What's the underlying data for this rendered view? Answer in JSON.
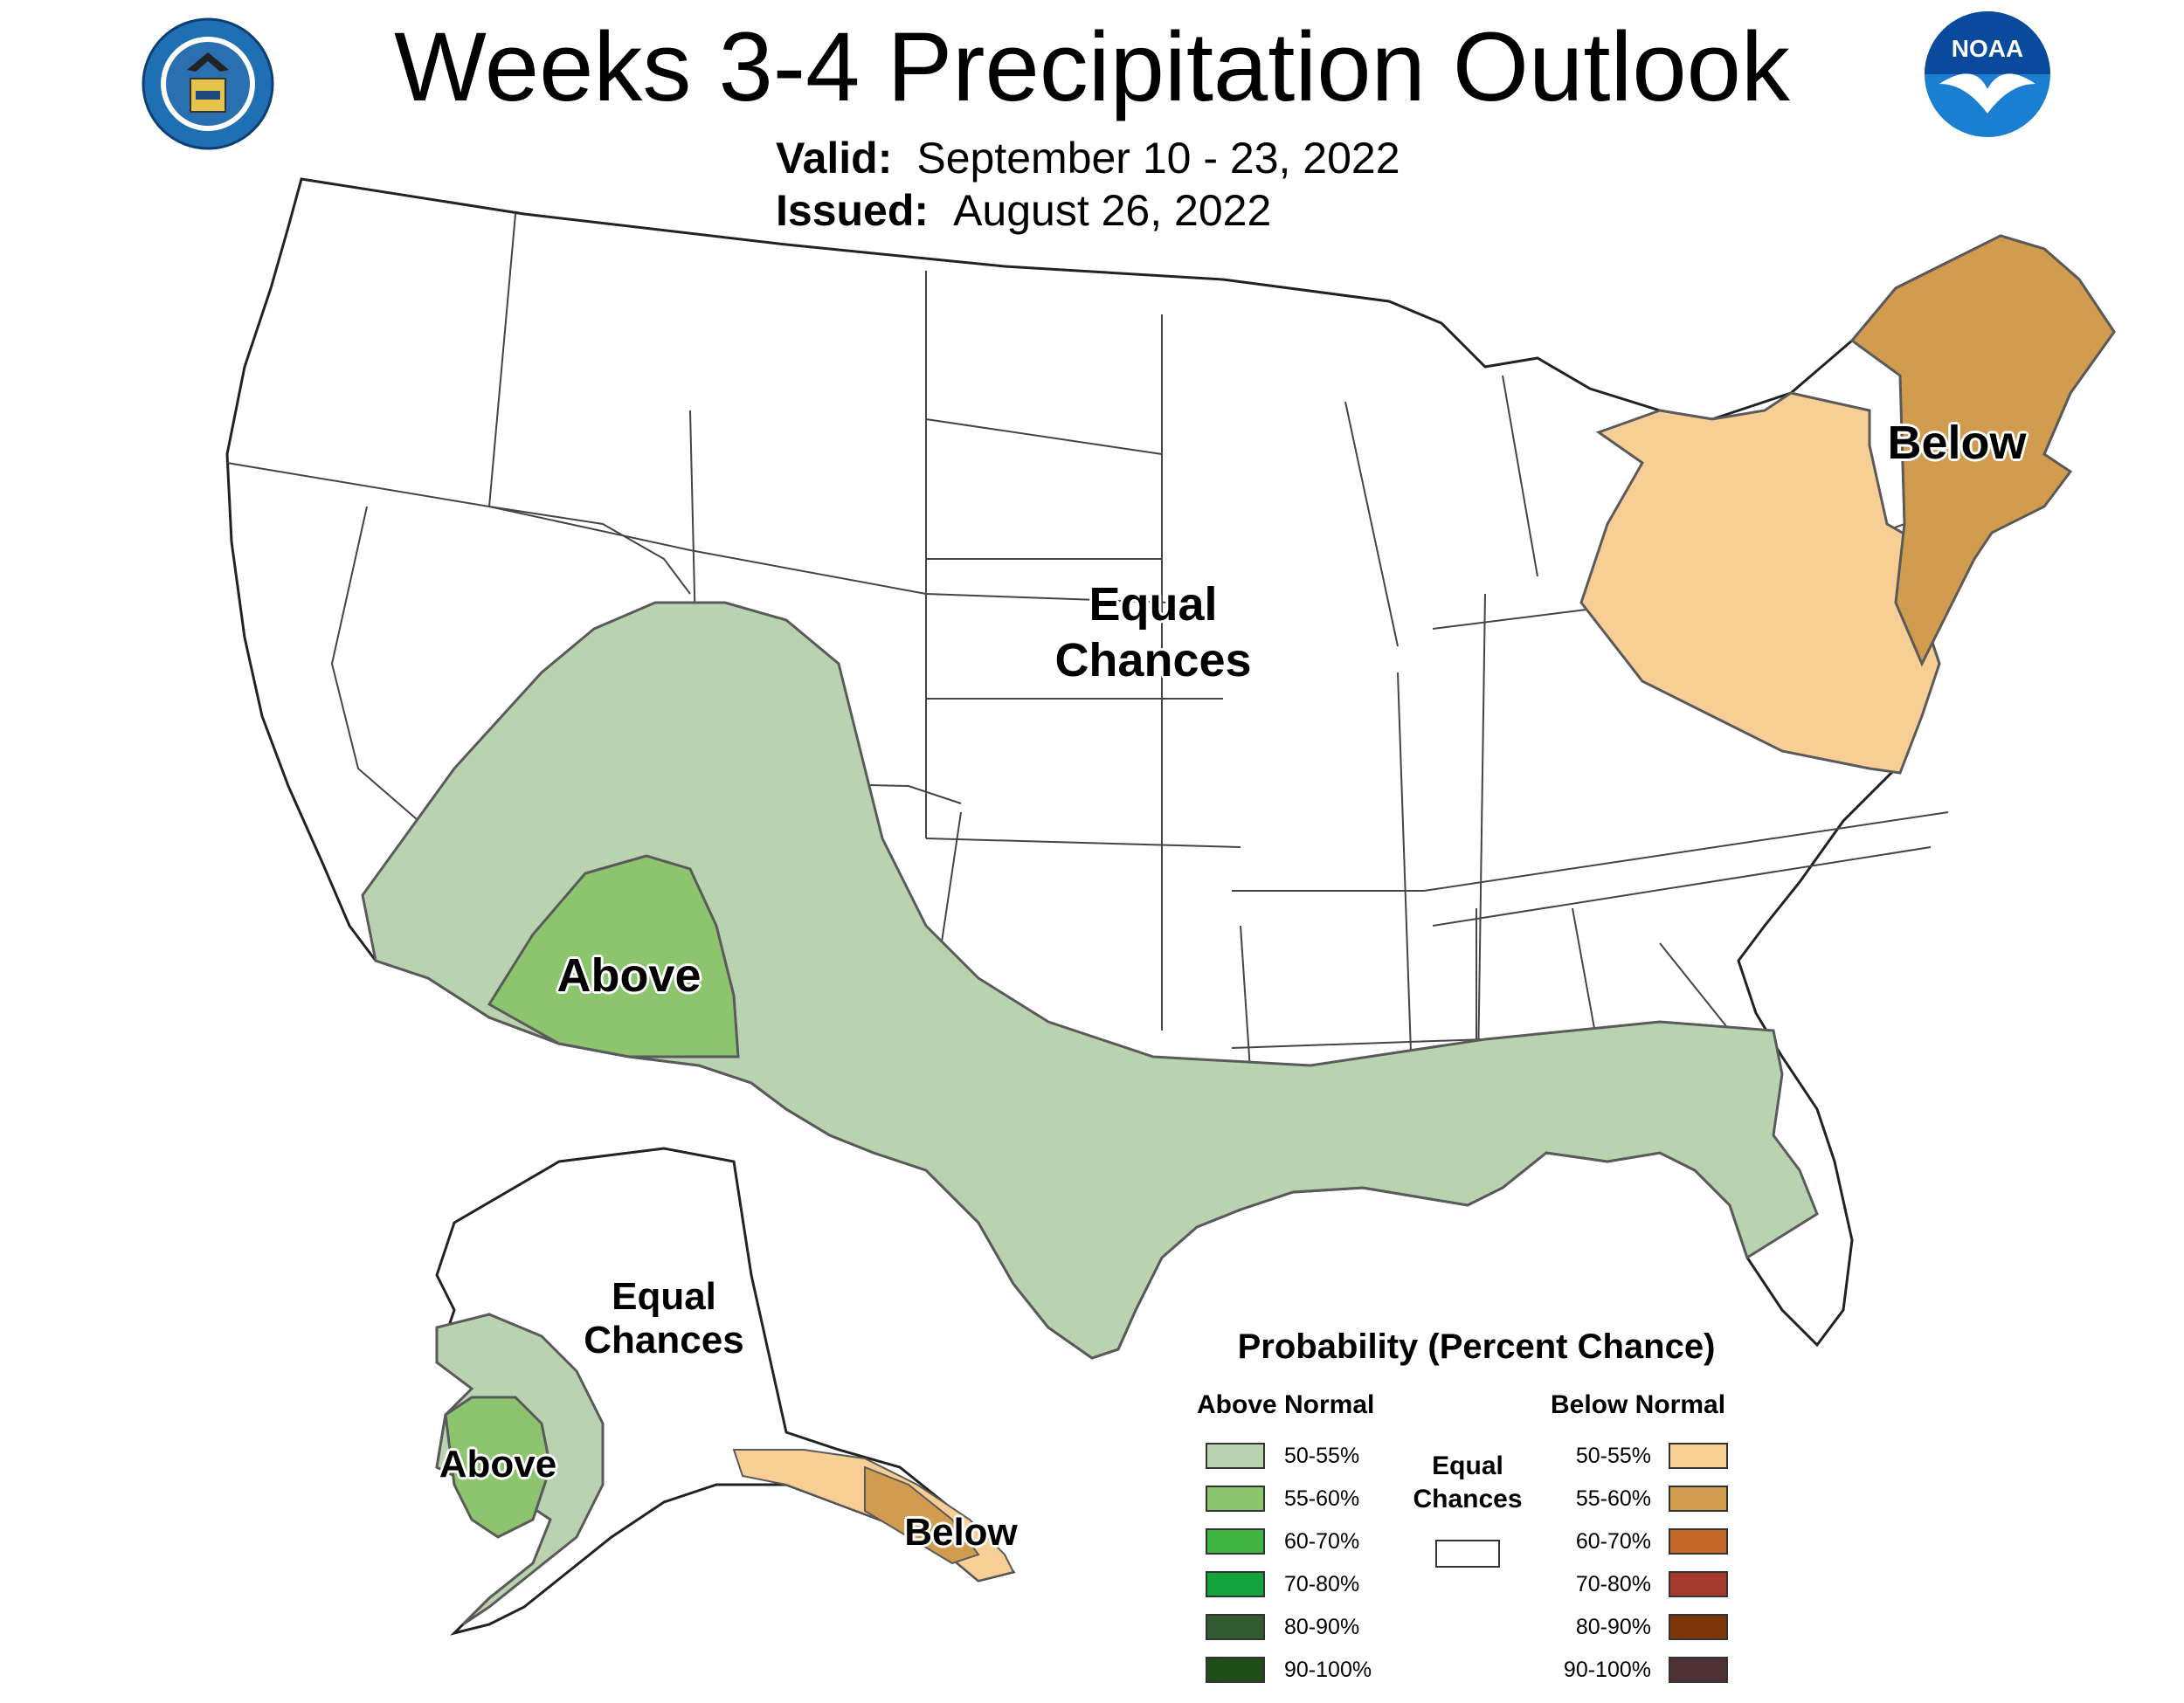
{
  "title": "Weeks 3-4 Precipitation Outlook",
  "valid_label": "Valid:",
  "valid_value": "September 10 - 23, 2022",
  "issued_label": "Issued:",
  "issued_value": "August 26, 2022",
  "logos": {
    "left": "seal-icon",
    "right": "noaa-logo-icon",
    "noaa_text": "NOAA"
  },
  "map_labels": {
    "conus_equal_line1": "Equal",
    "conus_equal_line2": "Chances",
    "conus_above": "Above",
    "conus_below": "Below",
    "alaska_equal_line1": "Equal",
    "alaska_equal_line2": "Chances",
    "alaska_above": "Above",
    "alaska_below": "Below"
  },
  "legend": {
    "title": "Probability (Percent Chance)",
    "above_header": "Above Normal",
    "below_header": "Below Normal",
    "equal_line1": "Equal",
    "equal_line2": "Chances",
    "equal_color": "#ffffff",
    "above": [
      {
        "label": "50-55%",
        "color": "#b9d3b0"
      },
      {
        "label": "55-60%",
        "color": "#8cc56e"
      },
      {
        "label": "60-70%",
        "color": "#3fb33f"
      },
      {
        "label": "70-80%",
        "color": "#13a23b"
      },
      {
        "label": "80-90%",
        "color": "#315c31"
      },
      {
        "label": "90-100%",
        "color": "#1e4d16"
      }
    ],
    "below": [
      {
        "label": "50-55%",
        "color": "#f7cf95"
      },
      {
        "label": "55-60%",
        "color": "#d29c4e"
      },
      {
        "label": "60-70%",
        "color": "#c5692b"
      },
      {
        "label": "70-80%",
        "color": "#a4382c"
      },
      {
        "label": "80-90%",
        "color": "#7a3508"
      },
      {
        "label": "90-100%",
        "color": "#4e3035"
      }
    ]
  },
  "colors": {
    "above_50_55": "#b9d3b0",
    "above_55_60": "#8cc56e",
    "below_50_55": "#f7cf95",
    "below_55_60": "#d29c4e"
  }
}
